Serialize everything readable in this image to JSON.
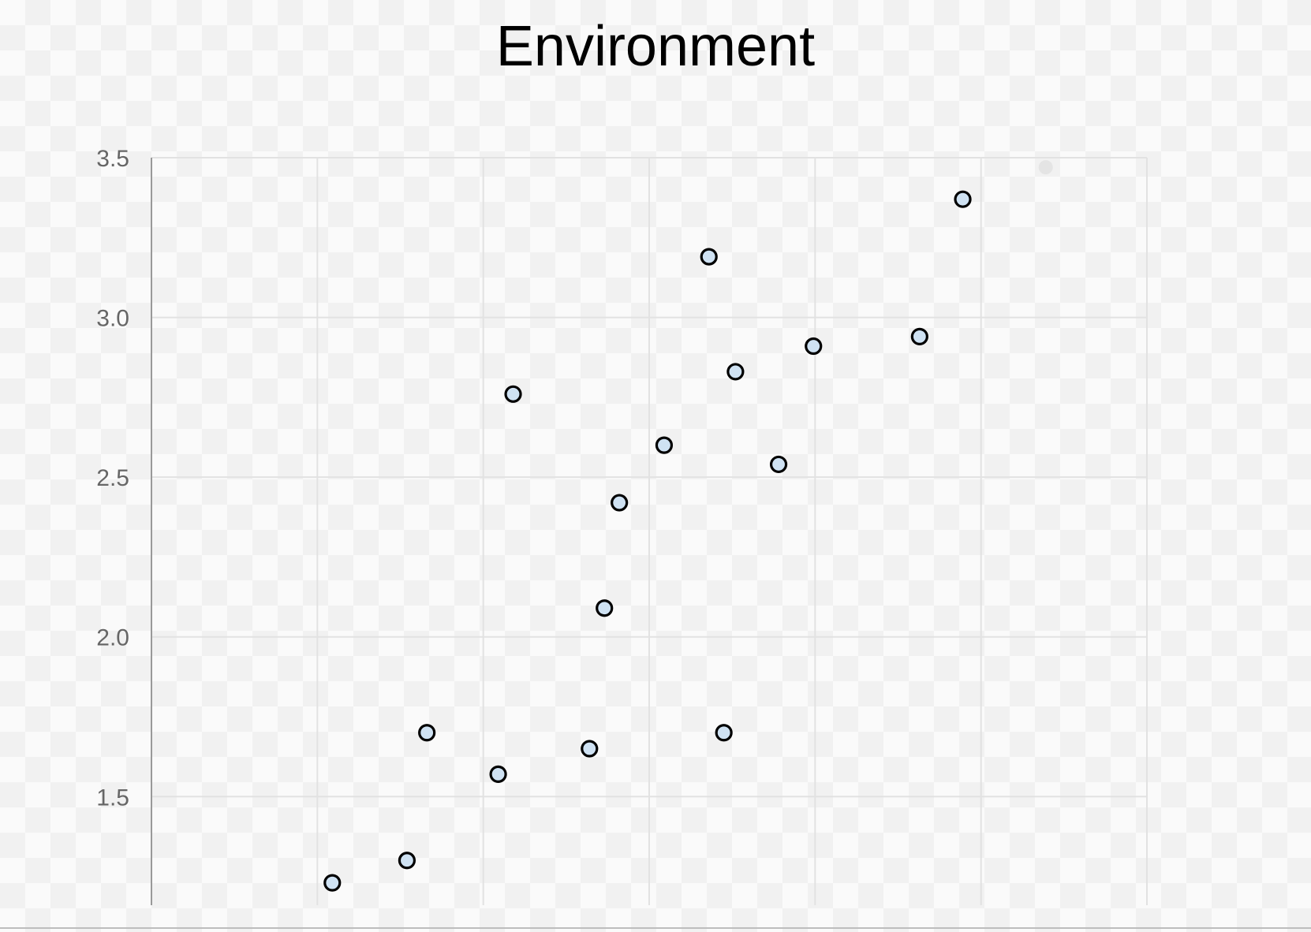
{
  "chart_data": {
    "type": "scatter",
    "title": "Environment",
    "xlabel": "",
    "ylabel": "",
    "grid": true,
    "ylim": [
      1.16,
      3.5
    ],
    "yticks": [
      "3.5",
      "3.0",
      "2.5",
      "2.0",
      "1.5"
    ],
    "xgrid_count": 7,
    "series": [
      {
        "marker_color": "#cfe2f3",
        "edge_color": "#000000",
        "points": [
          {
            "x": 1.09,
            "y": 1.23
          },
          {
            "x": 1.54,
            "y": 1.3
          },
          {
            "x": 1.66,
            "y": 1.7
          },
          {
            "x": 2.09,
            "y": 1.57
          },
          {
            "x": 2.18,
            "y": 2.76
          },
          {
            "x": 2.64,
            "y": 1.65
          },
          {
            "x": 2.73,
            "y": 2.09
          },
          {
            "x": 2.82,
            "y": 2.42
          },
          {
            "x": 3.09,
            "y": 2.6
          },
          {
            "x": 3.36,
            "y": 3.19
          },
          {
            "x": 3.45,
            "y": 1.7
          },
          {
            "x": 3.52,
            "y": 2.83
          },
          {
            "x": 3.78,
            "y": 2.54
          },
          {
            "x": 3.99,
            "y": 2.91
          },
          {
            "x": 4.63,
            "y": 2.94
          },
          {
            "x": 4.89,
            "y": 3.37
          }
        ]
      },
      {
        "marker_color": "#e4e4e4",
        "edge_color": "none",
        "points": [
          {
            "x": 5.39,
            "y": 3.47
          }
        ]
      }
    ],
    "xlim": [
      0,
      6
    ]
  }
}
